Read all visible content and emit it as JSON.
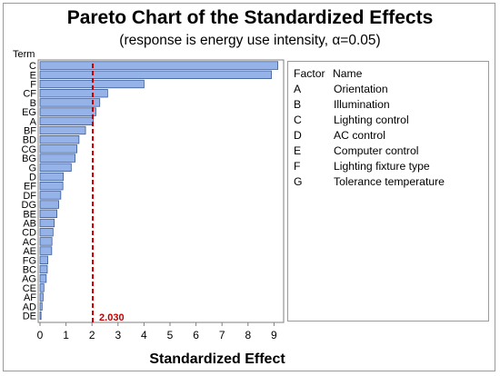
{
  "chart_data": {
    "type": "bar",
    "orientation": "horizontal",
    "title": "Pareto Chart of the Standardized Effects",
    "subtitle": "(response is energy use intensity, α=0.05)",
    "xlabel": "Standardized Effect",
    "ylabel": "Term",
    "xlim": [
      0,
      9.5
    ],
    "xticks": [
      "0",
      "1",
      "2",
      "3",
      "4",
      "5",
      "6",
      "7",
      "8",
      "9"
    ],
    "categories": [
      "C",
      "E",
      "F",
      "CF",
      "B",
      "EG",
      "A",
      "BF",
      "BD",
      "CG",
      "BG",
      "G",
      "D",
      "EF",
      "DF",
      "DG",
      "BE",
      "AB",
      "CD",
      "AC",
      "AE",
      "FG",
      "BC",
      "AG",
      "CE",
      "AF",
      "AD",
      "DE"
    ],
    "values": [
      9.15,
      8.9,
      4.0,
      2.6,
      2.3,
      2.15,
      2.05,
      1.75,
      1.5,
      1.42,
      1.35,
      1.2,
      0.9,
      0.88,
      0.8,
      0.72,
      0.65,
      0.55,
      0.5,
      0.46,
      0.45,
      0.3,
      0.28,
      0.24,
      0.15,
      0.12,
      0.08,
      0.04
    ],
    "reference_line": {
      "value": 2.03,
      "label": "2.030",
      "color": "#c00000"
    },
    "bar_color": "#95b3e8",
    "bar_edge_color": "#2b4a86"
  },
  "legend": {
    "header_factor": "Factor",
    "header_name": "Name",
    "rows": [
      {
        "code": "A",
        "name": "Orientation"
      },
      {
        "code": "B",
        "name": "Illumination"
      },
      {
        "code": "C",
        "name": "Lighting control"
      },
      {
        "code": "D",
        "name": "AC control"
      },
      {
        "code": "E",
        "name": "Computer control"
      },
      {
        "code": "F",
        "name": "Lighting fixture type"
      },
      {
        "code": "G",
        "name": "Tolerance temperature"
      }
    ]
  }
}
